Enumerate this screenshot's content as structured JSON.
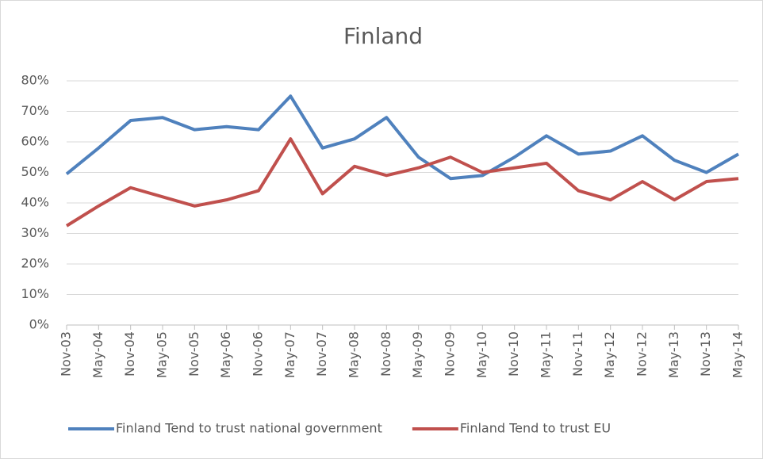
{
  "chart_data": {
    "type": "line",
    "title": "Finland",
    "categories": [
      "Nov-03",
      "May-04",
      "Nov-04",
      "May-05",
      "Nov-05",
      "May-06",
      "Nov-06",
      "May-07",
      "Nov-07",
      "May-08",
      "Nov-08",
      "May-09",
      "Nov-09",
      "May-10",
      "Nov-10",
      "May-11",
      "Nov-11",
      "May-12",
      "Nov-12",
      "May-13",
      "Nov-13",
      "May-14"
    ],
    "series": [
      {
        "name": "Finland Tend to trust national government",
        "color": "#4f81bd",
        "values": [
          49.5,
          58,
          67,
          68,
          64,
          65,
          64,
          75,
          58,
          61,
          68,
          55,
          48,
          49,
          55,
          62,
          56,
          57,
          62,
          54,
          50,
          56
        ]
      },
      {
        "name": "Finland Tend to trust EU",
        "color": "#c0504d",
        "values": [
          32.5,
          39,
          45,
          42,
          39,
          41,
          44,
          61,
          43,
          52,
          49,
          51.5,
          55,
          50,
          51.5,
          53,
          44,
          41,
          47,
          41,
          47,
          48
        ]
      }
    ],
    "ylim": [
      0,
      80
    ],
    "yticks": [
      {
        "value": 0,
        "label": "0%"
      },
      {
        "value": 10,
        "label": "10%"
      },
      {
        "value": 20,
        "label": "20%"
      },
      {
        "value": 30,
        "label": "30%"
      },
      {
        "value": 40,
        "label": "40%"
      },
      {
        "value": 50,
        "label": "50%"
      },
      {
        "value": 60,
        "label": "60%"
      },
      {
        "value": 70,
        "label": "70%"
      },
      {
        "value": 80,
        "label": "80%"
      }
    ],
    "grid": true,
    "legend": "bottom"
  }
}
